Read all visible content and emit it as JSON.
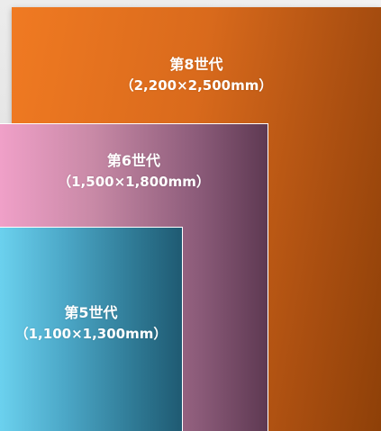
{
  "generations": {
    "gen8": {
      "title": "第8世代",
      "size": "（2,200×2,500mm）",
      "color": "#e0701f"
    },
    "gen6": {
      "title": "第6世代",
      "size": "（1,500×1,800mm）",
      "color": "#b07090"
    },
    "gen5": {
      "title": "第5世代",
      "size": "（1,100×1,300mm）",
      "color": "#3f95b5"
    }
  }
}
